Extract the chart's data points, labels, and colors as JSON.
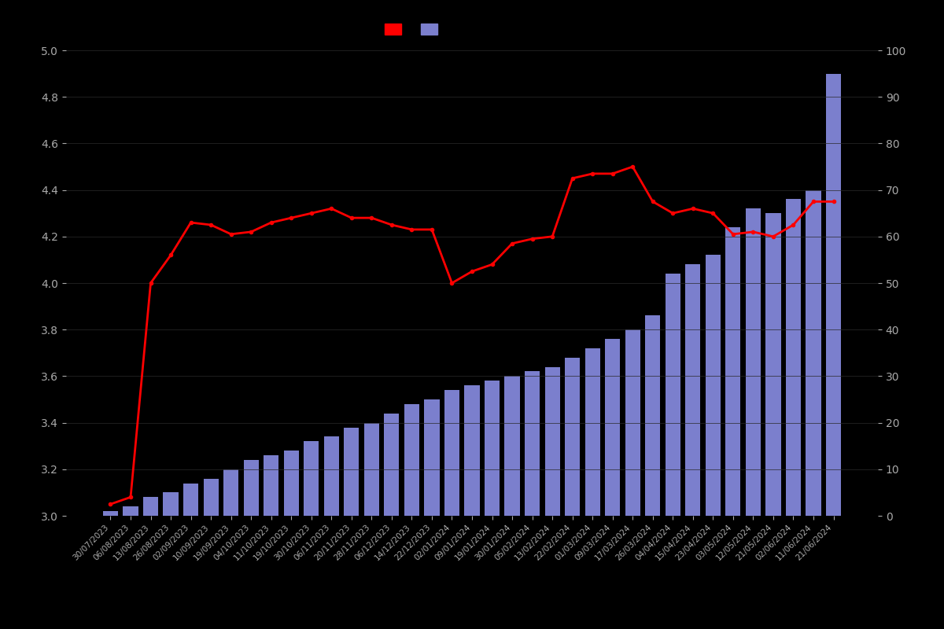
{
  "dates": [
    "30/07/2023",
    "06/08/2023",
    "13/08/2023",
    "26/08/2023",
    "02/09/2023",
    "10/09/2023",
    "19/09/2023",
    "04/10/2023",
    "11/10/2023",
    "19/10/2023",
    "30/10/2023",
    "06/11/2023",
    "20/11/2023",
    "28/11/2023",
    "06/12/2023",
    "14/12/2023",
    "22/12/2023",
    "02/01/2024",
    "09/01/2024",
    "19/01/2024",
    "30/01/2024",
    "05/02/2024",
    "13/02/2024",
    "22/02/2024",
    "01/03/2024",
    "09/03/2024",
    "17/03/2024",
    "26/03/2024",
    "04/04/2024",
    "15/04/2024",
    "23/04/2024",
    "03/05/2024",
    "12/05/2024",
    "21/05/2024",
    "02/06/2024",
    "11/06/2024",
    "21/06/2024"
  ],
  "bar_counts": [
    1,
    2,
    4,
    5,
    7,
    8,
    10,
    12,
    13,
    14,
    16,
    17,
    19,
    20,
    22,
    24,
    25,
    27,
    28,
    29,
    30,
    31,
    32,
    34,
    36,
    38,
    40,
    43,
    52,
    54,
    56,
    62,
    66,
    65,
    68,
    70,
    95
  ],
  "avg_ratings": [
    3.05,
    3.08,
    4.0,
    4.12,
    4.26,
    4.25,
    4.21,
    4.22,
    4.26,
    4.28,
    4.3,
    4.32,
    4.28,
    4.28,
    4.25,
    4.23,
    4.23,
    4.0,
    4.05,
    4.08,
    4.17,
    4.19,
    4.2,
    4.45,
    4.47,
    4.47,
    4.5,
    4.35,
    4.3,
    4.32,
    4.3,
    4.21,
    4.22,
    4.2,
    4.25,
    4.35,
    4.35
  ],
  "bar_color": "#7b7fcd",
  "line_color": "#ff0000",
  "background_color": "#000000",
  "text_color": "#aaaaaa",
  "ylim_left": [
    3.0,
    5.0
  ],
  "ylim_right": [
    0,
    100
  ],
  "yticks_left": [
    3.0,
    3.2,
    3.4,
    3.6,
    3.8,
    4.0,
    4.2,
    4.4,
    4.6,
    4.8,
    5.0
  ],
  "yticks_right": [
    0,
    10,
    20,
    30,
    40,
    50,
    60,
    70,
    80,
    90,
    100
  ],
  "line_linewidth": 2.0,
  "marker_size": 3.0
}
